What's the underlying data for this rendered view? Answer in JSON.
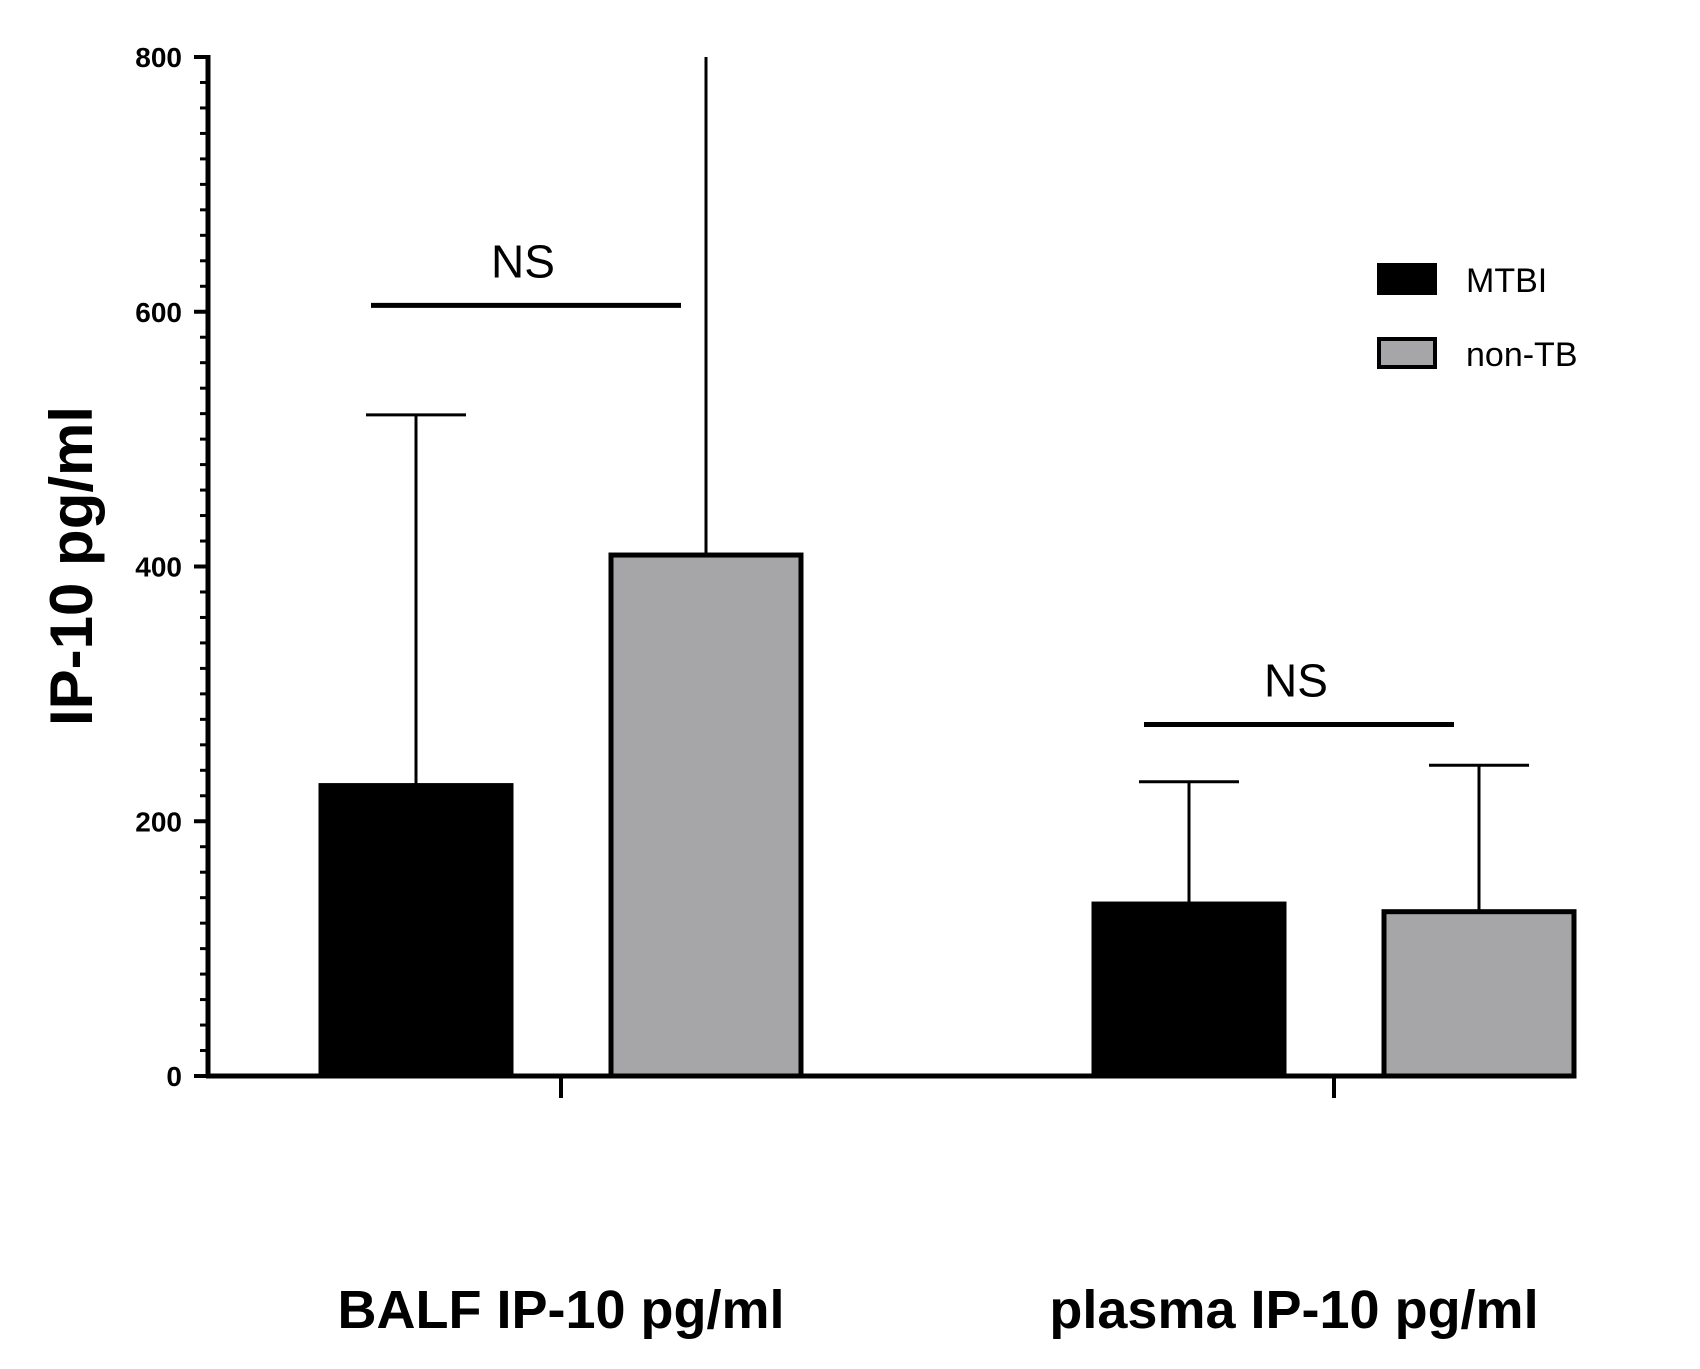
{
  "chart_data": {
    "type": "bar",
    "title": "",
    "xlabel": "",
    "ylabel": "IP-10 pg/ml",
    "ylim": [
      0,
      800
    ],
    "y_ticks": [
      "0",
      "200",
      "400",
      "600",
      "800"
    ],
    "categories": [
      "BALF IP-10 pg/ml",
      "plasma IP-10 pg/ml"
    ],
    "series": [
      {
        "name": "MTBI",
        "color": "#000000",
        "values": [
          228,
          135
        ],
        "error_upper": [
          519,
          231
        ]
      },
      {
        "name": "non-TB",
        "color": "#a6a6a8",
        "values": [
          409,
          129
        ],
        "error_upper": [
          800,
          244
        ]
      }
    ],
    "annotations": [
      {
        "label": "NS",
        "category": "BALF IP-10 pg/ml",
        "y": 605
      },
      {
        "label": "NS",
        "category": "plasma IP-10 pg/ml",
        "y": 276
      }
    ],
    "legend": {
      "placement": "top-right",
      "entries": [
        "MTBI",
        "non-TB"
      ]
    },
    "grid": false
  }
}
